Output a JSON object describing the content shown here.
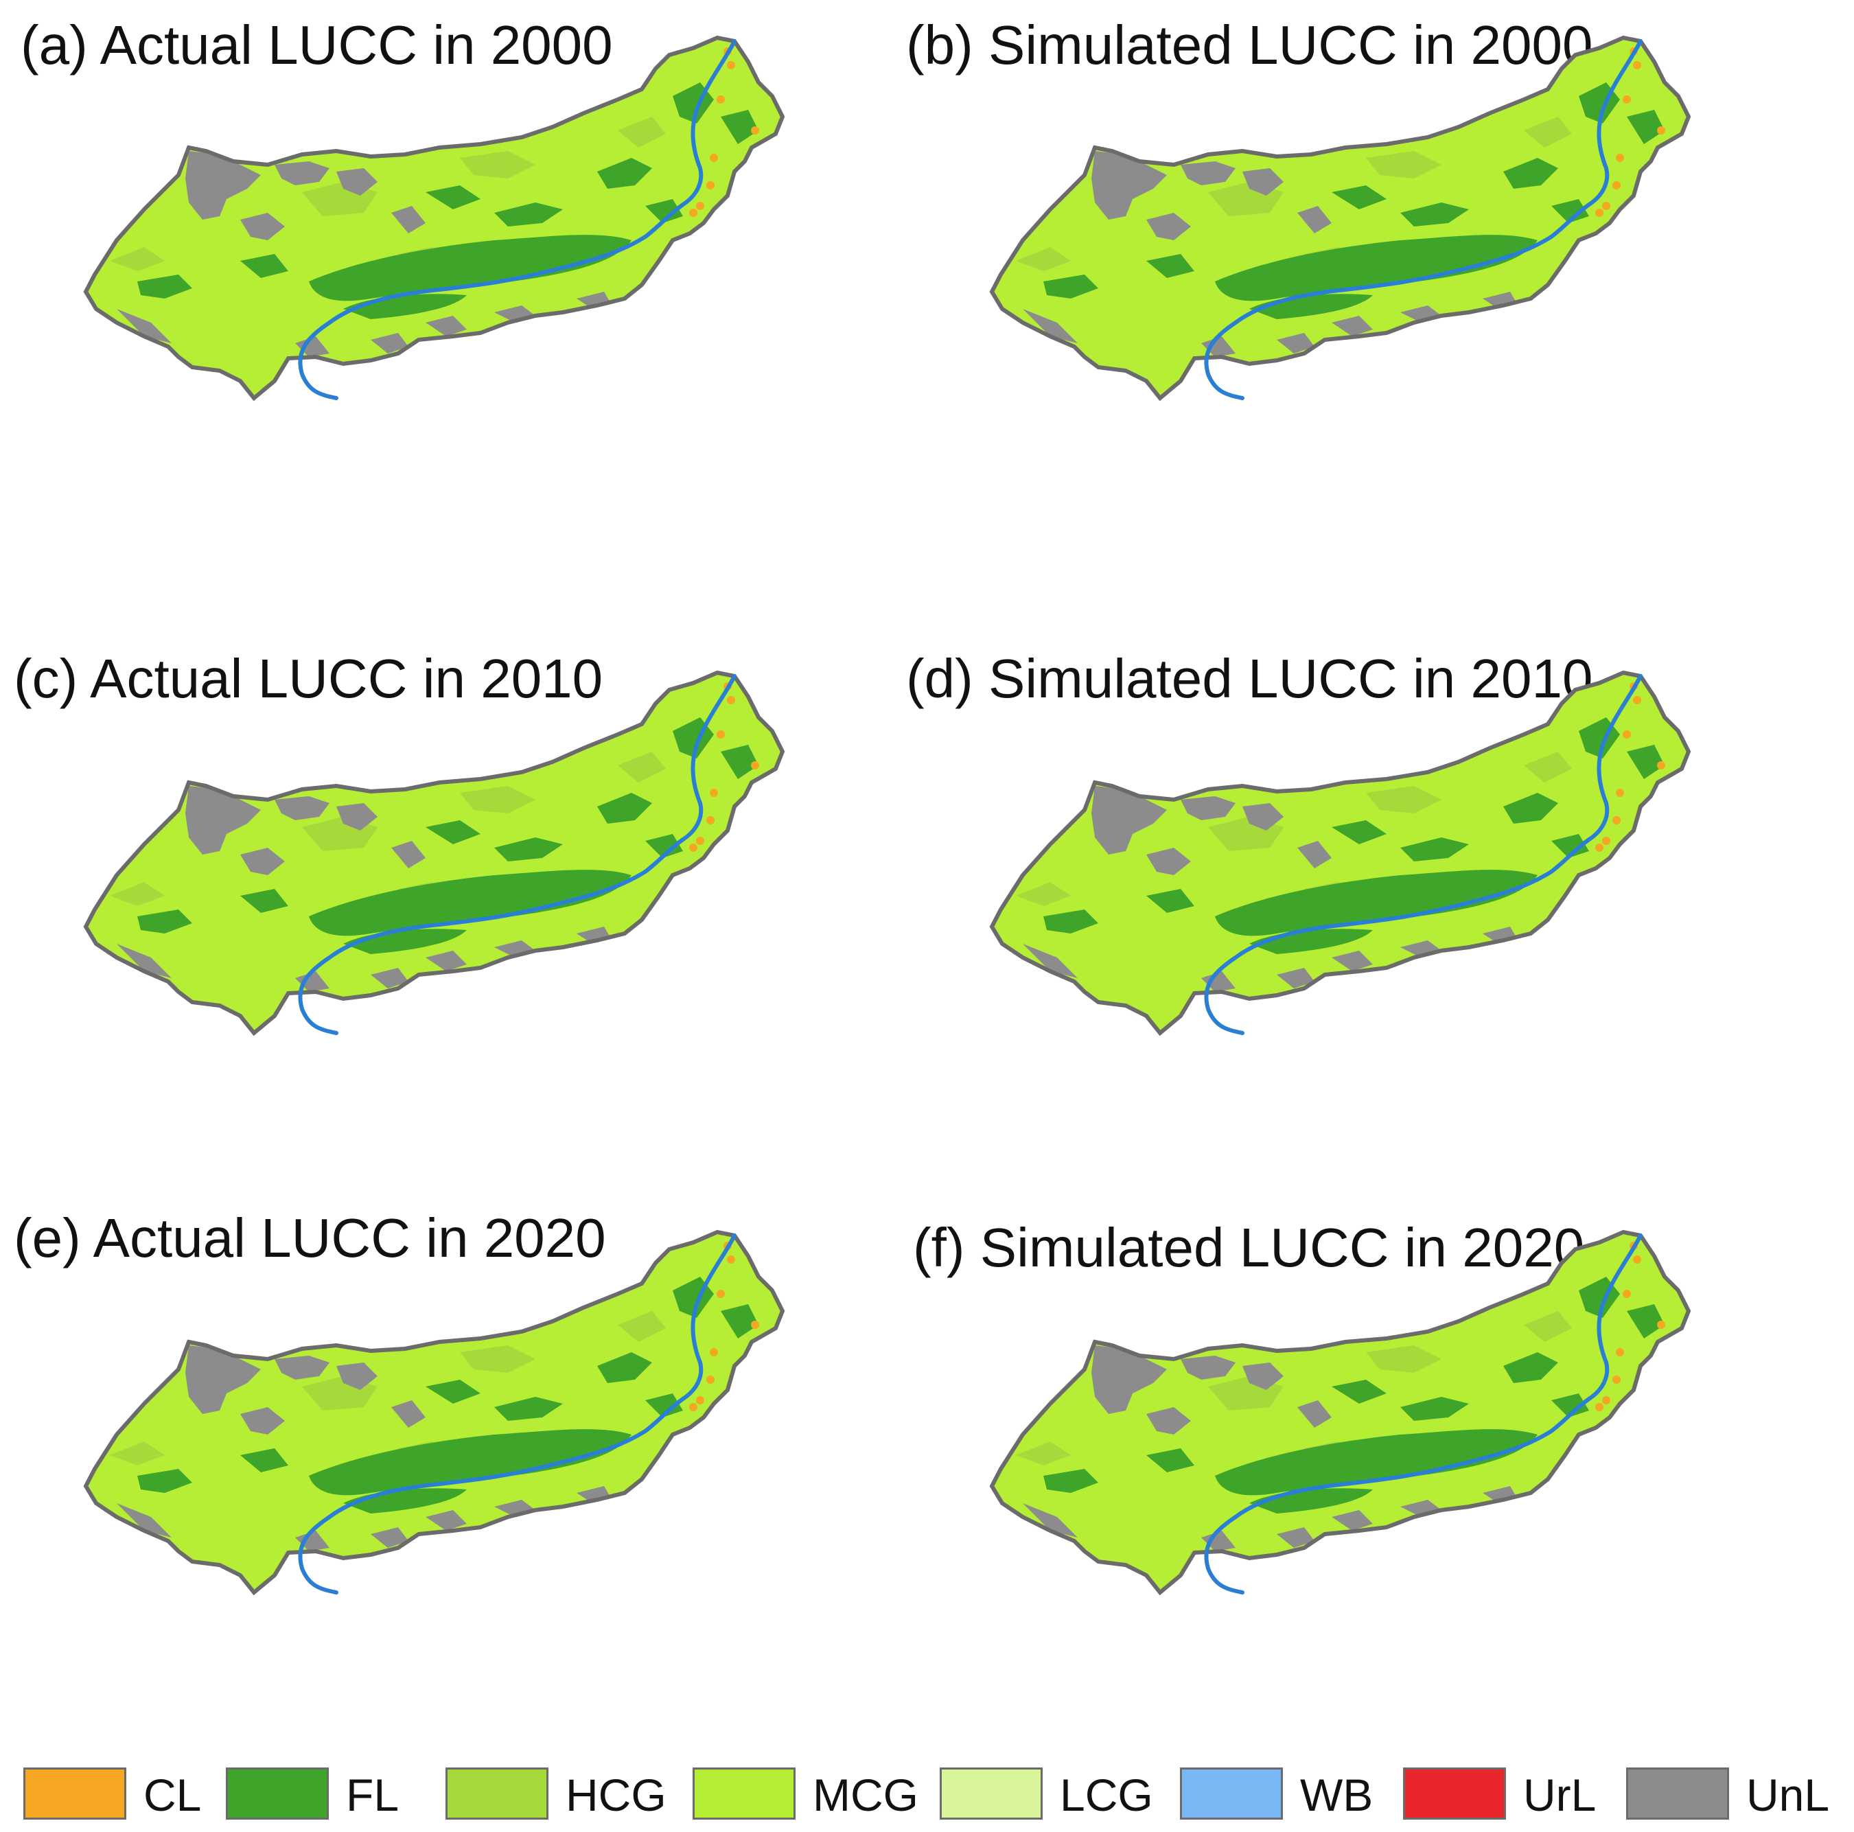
{
  "panels": [
    {
      "label": "(a) Actual LUCC in 2000"
    },
    {
      "label": "(b) Simulated LUCC in 2000"
    },
    {
      "label": "(c) Actual LUCC in 2010"
    },
    {
      "label": "(d) Simulated LUCC in 2010"
    },
    {
      "label": "(e) Actual LUCC in 2020"
    },
    {
      "label": "(f) Simulated LUCC in 2020"
    }
  ],
  "colors": {
    "CL": "#f5a623",
    "FL": "#3fa52a",
    "HCG": "#a6d93a",
    "MCG": "#b6ee36",
    "LCG": "#d8f59a",
    "WB": "#7ab8f5",
    "UrL": "#e8262b",
    "UnL": "#8c8c8c",
    "river": "#2a7fd4",
    "border": "#6b6b6b"
  },
  "legend": [
    {
      "code": "CL",
      "label": "CL",
      "color": "#f5a623"
    },
    {
      "code": "FL",
      "label": "FL",
      "color": "#3fa52a"
    },
    {
      "code": "HCG",
      "label": "HCG",
      "color": "#a6d93a"
    },
    {
      "code": "MCG",
      "label": "MCG",
      "color": "#b6ee36"
    },
    {
      "code": "LCG",
      "label": "LCG",
      "color": "#d8f59a"
    },
    {
      "code": "WB",
      "label": "WB",
      "color": "#7ab8f5"
    },
    {
      "code": "UrL",
      "label": "UrL",
      "color": "#e8262b"
    },
    {
      "code": "UnL",
      "label": "UnL",
      "color": "#8c8c8c"
    }
  ]
}
